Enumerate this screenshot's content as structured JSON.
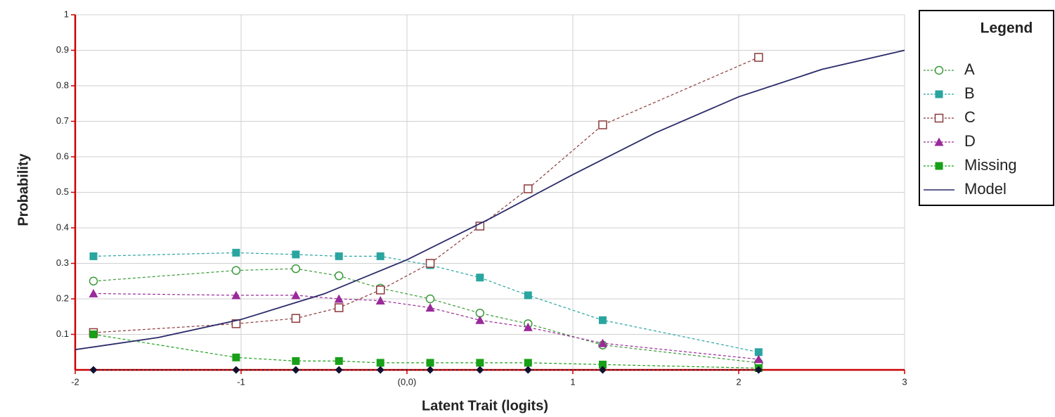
{
  "chart_data": {
    "type": "line",
    "xlabel": "Latent Trait (logits)",
    "ylabel": "Probability",
    "legend_title": "Legend",
    "legend": "right",
    "grid": true,
    "xlim": [
      -2,
      3
    ],
    "ylim": [
      0,
      1
    ],
    "xticks": [
      -2,
      -1,
      {
        "value": 0,
        "label": "(0,0)"
      },
      1,
      2,
      3
    ],
    "yticks": [
      0.1,
      0.2,
      0.3,
      0.4,
      0.5,
      0.6,
      0.7,
      0.8,
      0.9,
      1
    ],
    "x": [
      -1.89,
      -1.03,
      -0.67,
      -0.41,
      -0.16,
      0.14,
      0.44,
      0.73,
      1.18,
      2.12
    ],
    "series": [
      {
        "name": "A",
        "color": "#3a9a3a",
        "marker": "open-circle",
        "dashed": true,
        "values": [
          0.25,
          0.28,
          0.285,
          0.265,
          0.23,
          0.2,
          0.16,
          0.13,
          0.07,
          0.02
        ]
      },
      {
        "name": "B",
        "color": "#2aa5a0",
        "marker": "square",
        "dashed": true,
        "values": [
          0.32,
          0.33,
          0.325,
          0.32,
          0.32,
          0.295,
          0.26,
          0.21,
          0.14,
          0.05
        ]
      },
      {
        "name": "C",
        "color": "#8b3a3a",
        "marker": "open-square",
        "dashed": true,
        "values": [
          0.105,
          0.13,
          0.145,
          0.175,
          0.225,
          0.3,
          0.405,
          0.51,
          0.69,
          0.88
        ]
      },
      {
        "name": "D",
        "color": "#9a2a9a",
        "marker": "triangle",
        "dashed": true,
        "values": [
          0.215,
          0.21,
          0.21,
          0.2,
          0.195,
          0.175,
          0.14,
          0.12,
          0.075,
          0.03
        ]
      },
      {
        "name": "Missing",
        "color": "#18a018",
        "marker": "square",
        "dashed": true,
        "values": [
          0.1,
          0.035,
          0.025,
          0.025,
          0.02,
          0.02,
          0.02,
          0.02,
          0.015,
          0.005
        ]
      },
      {
        "color": "#101030",
        "marker": "diamond",
        "dashed": true,
        "values": [
          0,
          0,
          0,
          0,
          0,
          0,
          0,
          0,
          0,
          0
        ]
      },
      {
        "name": "Model",
        "color": "#2a2a6a",
        "marker": "none",
        "dashed": false,
        "x": [
          -2,
          -1.5,
          -1,
          -0.5,
          0,
          0.5,
          1,
          1.5,
          2,
          2.5,
          3
        ],
        "values": [
          0.057,
          0.091,
          0.142,
          0.214,
          0.31,
          0.426,
          0.55,
          0.668,
          0.769,
          0.846,
          0.9
        ]
      }
    ]
  }
}
